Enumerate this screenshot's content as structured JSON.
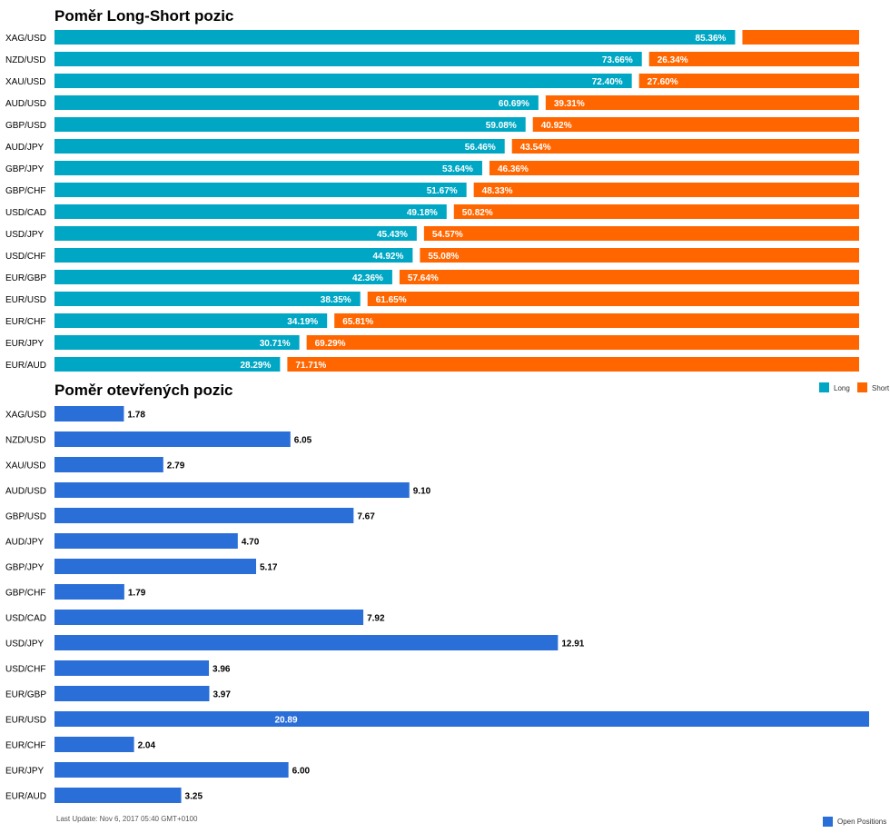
{
  "chart_data": [
    {
      "type": "bar",
      "stacked": true,
      "orientation": "horizontal",
      "title": "Poměr Long-Short pozic",
      "categories": [
        "XAG/USD",
        "NZD/USD",
        "XAU/USD",
        "AUD/USD",
        "GBP/USD",
        "AUD/JPY",
        "GBP/JPY",
        "GBP/CHF",
        "USD/CAD",
        "USD/JPY",
        "USD/CHF",
        "EUR/GBP",
        "EUR/USD",
        "EUR/CHF",
        "EUR/JPY",
        "EUR/AUD"
      ],
      "series": [
        {
          "name": "Long",
          "color": "#00a7c4",
          "values": [
            85.36,
            73.66,
            72.4,
            60.69,
            59.08,
            56.46,
            53.64,
            51.67,
            49.18,
            45.43,
            44.92,
            42.36,
            38.35,
            34.19,
            30.71,
            28.29
          ],
          "labels": [
            "85.36%",
            "73.66%",
            "72.40%",
            "60.69%",
            "59.08%",
            "56.46%",
            "53.64%",
            "51.67%",
            "49.18%",
            "45.43%",
            "44.92%",
            "42.36%",
            "38.35%",
            "34.19%",
            "30.71%",
            "28.29%"
          ]
        },
        {
          "name": "Short",
          "color": "#ff6600",
          "values": [
            14.64,
            26.34,
            27.6,
            39.31,
            40.92,
            43.54,
            46.36,
            48.33,
            50.82,
            54.57,
            55.08,
            57.64,
            61.65,
            65.81,
            69.29,
            71.71
          ],
          "labels": [
            "",
            "26.34%",
            "27.60%",
            "39.31%",
            "40.92%",
            "43.54%",
            "46.36%",
            "48.33%",
            "50.82%",
            "54.57%",
            "55.08%",
            "57.64%",
            "61.65%",
            "65.81%",
            "69.29%",
            "71.71%"
          ]
        }
      ],
      "legend_position": "bottom-right"
    },
    {
      "type": "bar",
      "orientation": "horizontal",
      "title": "Poměr otevřených pozic",
      "categories": [
        "XAG/USD",
        "NZD/USD",
        "XAU/USD",
        "AUD/USD",
        "GBP/USD",
        "AUD/JPY",
        "GBP/JPY",
        "GBP/CHF",
        "USD/CAD",
        "USD/JPY",
        "USD/CHF",
        "EUR/GBP",
        "EUR/USD",
        "EUR/CHF",
        "EUR/JPY",
        "EUR/AUD"
      ],
      "series": [
        {
          "name": "Open Positions",
          "color": "#2a6ed8",
          "values": [
            1.78,
            6.05,
            2.79,
            9.1,
            7.67,
            4.7,
            5.17,
            1.79,
            7.92,
            12.91,
            3.96,
            3.97,
            20.89,
            2.04,
            6.0,
            3.25
          ],
          "labels": [
            "1.78",
            "6.05",
            "2.79",
            "9.10",
            "7.67",
            "4.70",
            "5.17",
            "1.79",
            "7.92",
            "12.91",
            "3.96",
            "3.97",
            "20.89",
            "2.04",
            "6.00",
            "3.25"
          ]
        }
      ],
      "legend_position": "bottom-right"
    }
  ],
  "footer": "Last Update: Nov 6, 2017 05:40 GMT+0100"
}
